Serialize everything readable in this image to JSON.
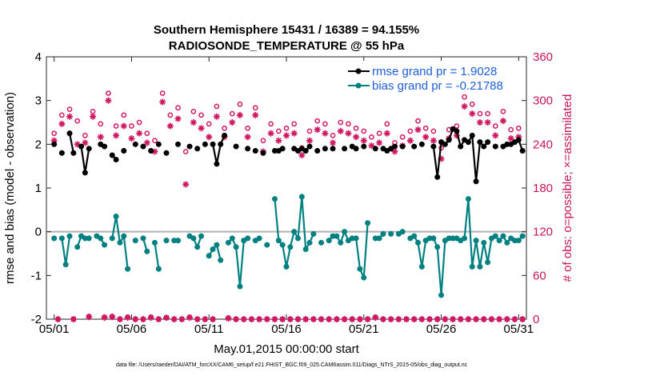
{
  "chart_data": {
    "type": "line",
    "title_line1": "Southern Hemisphere 15431 / 16389 = 94.155%",
    "title_line2": "RADIOSONDE_TEMPERATURE @ 55 hPa",
    "xlabel": "May.01,2015 00:00:00 start",
    "ylabel_left": "rmse and bias (model - observation)",
    "ylabel_right": "# of obs: o=possible; ×=assimilated",
    "footnote": "data file: /Users/raeder/DAI/ATM_forcXX/CAM6_setup/f.e21.FHIST_BGC.f09_025.CAM6assim.011/Diags_NTrS_2015-05/obs_diag_output.nc",
    "x_range": [
      0.5,
      31.5
    ],
    "ylim_left": [
      -2,
      4
    ],
    "ylim_right": [
      0,
      360
    ],
    "x_ticks": [
      {
        "day": 1,
        "label": "05/01"
      },
      {
        "day": 6,
        "label": "05/06"
      },
      {
        "day": 11,
        "label": "05/11"
      },
      {
        "day": 16,
        "label": "05/16"
      },
      {
        "day": 21,
        "label": "05/21"
      },
      {
        "day": 26,
        "label": "05/26"
      },
      {
        "day": 31,
        "label": "05/31"
      }
    ],
    "y_ticks_left": [
      "-2",
      "-1",
      "0",
      "1",
      "2",
      "3",
      "4"
    ],
    "y_ticks_right": [
      "0",
      "60",
      "120",
      "180",
      "240",
      "300",
      "360"
    ],
    "x": [
      1.0,
      1.25,
      1.5,
      1.75,
      2.0,
      2.25,
      2.5,
      2.75,
      3.0,
      3.25,
      3.5,
      3.75,
      4.0,
      4.25,
      4.5,
      4.75,
      5.0,
      5.25,
      5.5,
      5.75,
      6.0,
      6.25,
      6.5,
      6.75,
      7.0,
      7.25,
      7.5,
      7.75,
      8.0,
      8.25,
      8.5,
      8.75,
      9.0,
      9.25,
      9.5,
      9.75,
      10.0,
      10.25,
      10.5,
      10.75,
      11.0,
      11.25,
      11.5,
      11.75,
      12.0,
      12.25,
      12.5,
      12.75,
      13.0,
      13.25,
      13.5,
      13.75,
      14.0,
      14.25,
      14.5,
      14.75,
      15.0,
      15.25,
      15.5,
      15.75,
      16.0,
      16.25,
      16.5,
      16.75,
      17.0,
      17.25,
      17.5,
      17.75,
      18.0,
      18.25,
      18.5,
      18.75,
      19.0,
      19.25,
      19.5,
      19.75,
      20.0,
      20.25,
      20.5,
      20.75,
      21.0,
      21.25,
      21.5,
      21.75,
      22.0,
      22.25,
      22.5,
      22.75,
      23.0,
      23.25,
      23.5,
      23.75,
      24.0,
      24.25,
      24.5,
      24.75,
      25.0,
      25.25,
      25.5,
      25.75,
      26.0,
      26.25,
      26.5,
      26.75,
      27.0,
      27.25,
      27.5,
      27.75,
      28.0,
      28.25,
      28.5,
      28.75,
      29.0,
      29.25,
      29.5,
      29.75,
      30.0,
      30.25,
      30.5,
      30.75,
      31.0,
      31.25
    ],
    "series": [
      {
        "name": "rmse grand pr = 1.9028",
        "axis": "left",
        "color": "#000000",
        "values": [
          2.0,
          null,
          1.8,
          null,
          2.25,
          1.8,
          null,
          1.95,
          1.35,
          1.9,
          null,
          null,
          2.0,
          1.95,
          null,
          1.75,
          1.65,
          null,
          1.85,
          null,
          null,
          2.0,
          null,
          1.95,
          null,
          1.85,
          null,
          2.0,
          null,
          1.8,
          null,
          null,
          2.0,
          null,
          null,
          1.95,
          null,
          1.9,
          null,
          2.0,
          null,
          2.0,
          1.55,
          2.0,
          2.2,
          null,
          null,
          1.95,
          null,
          null,
          1.9,
          null,
          1.85,
          null,
          1.8,
          null,
          null,
          1.85,
          1.85,
          1.9,
          null,
          null,
          1.9,
          1.85,
          1.9,
          1.85,
          1.95,
          null,
          1.85,
          null,
          1.9,
          null,
          1.9,
          null,
          null,
          1.9,
          null,
          1.95,
          1.9,
          null,
          1.95,
          null,
          null,
          1.9,
          null,
          1.9,
          1.85,
          1.9,
          1.95,
          null,
          1.95,
          null,
          null,
          1.95,
          null,
          2.0,
          null,
          null,
          1.95,
          1.25,
          2.05,
          2.0,
          2.1,
          2.35,
          2.3,
          1.95,
          2.1,
          2.05,
          2.2,
          1.15,
          2.05,
          1.95,
          2.05,
          null,
          1.95,
          null,
          1.95,
          2.0,
          2.0,
          2.05,
          2.1,
          1.85
        ]
      },
      {
        "name": "bias grand pr = -0.21788",
        "axis": "left",
        "color": "#008080",
        "values": [
          -0.15,
          null,
          -0.15,
          -0.75,
          -0.1,
          null,
          -0.35,
          -0.1,
          -0.15,
          -0.15,
          null,
          -0.1,
          -0.15,
          -0.3,
          null,
          -0.15,
          0.35,
          -0.25,
          -0.1,
          -0.85,
          null,
          -0.2,
          null,
          -0.15,
          -0.45,
          null,
          -0.25,
          -0.85,
          null,
          -0.2,
          null,
          -0.2,
          -0.2,
          null,
          null,
          -0.1,
          -0.15,
          -0.35,
          -0.1,
          null,
          -0.55,
          -0.4,
          -0.3,
          -0.65,
          null,
          -0.25,
          -0.15,
          -0.35,
          -1.25,
          -0.2,
          -0.15,
          null,
          -0.2,
          -0.15,
          null,
          -0.3,
          null,
          0.75,
          -0.2,
          -0.3,
          -0.8,
          -0.35,
          0.0,
          -0.15,
          0.8,
          -0.4,
          -0.25,
          -0.05,
          null,
          -0.25,
          null,
          -0.2,
          -0.1,
          -0.1,
          -0.25,
          0.0,
          -0.2,
          -0.15,
          -0.15,
          -0.85,
          -1.05,
          0.2,
          null,
          -0.15,
          -0.15,
          -0.05,
          null,
          -0.05,
          null,
          -0.05,
          0.0,
          null,
          -0.15,
          -0.1,
          -0.25,
          -0.8,
          -0.2,
          -0.15,
          -0.15,
          -0.35,
          -1.45,
          -0.2,
          -0.15,
          -0.15,
          -0.15,
          -0.2,
          -0.15,
          0.75,
          -0.8,
          -0.2,
          -0.8,
          -0.25,
          -0.7,
          -0.15,
          -0.1,
          -0.2,
          -0.1,
          -0.25,
          -0.15,
          -0.2,
          -0.2,
          -0.1
        ]
      },
      {
        "name": "possible",
        "axis": "right",
        "color": "#d01862",
        "marker": "circle",
        "values": [
          255,
          0,
          280,
          null,
          288,
          0,
          272,
          null,
          252,
          4,
          285,
          null,
          268,
          3,
          310,
          4,
          265,
          0,
          280,
          3,
          265,
          0,
          270,
          0,
          255,
          3,
          245,
          0,
          310,
          2,
          280,
          0,
          290,
          0,
          230,
          3,
          285,
          0,
          280,
          0,
          268,
          0,
          292,
          null,
          262,
          2,
          282,
          0,
          295,
          0,
          262,
          0,
          290,
          0,
          245,
          0,
          268,
          0,
          258,
          0,
          262,
          0,
          268,
          0,
          235,
          0,
          258,
          0,
          272,
          0,
          268,
          0,
          252,
          0,
          270,
          0,
          268,
          0,
          262,
          0,
          258,
          0,
          250,
          3,
          255,
          0,
          268,
          0,
          242,
          0,
          250,
          0,
          258,
          0,
          272,
          0,
          262,
          0,
          258,
          0,
          235,
          0,
          260,
          0,
          265,
          0,
          305,
          0,
          295,
          0,
          282,
          0,
          282,
          0,
          265,
          0,
          285,
          0,
          260,
          0,
          262,
          0
        ]
      },
      {
        "name": "assimilated",
        "axis": "right",
        "color": "#d01862",
        "marker": "star",
        "values": [
          245,
          0,
          268,
          null,
          278,
          0,
          240,
          null,
          242,
          3,
          278,
          null,
          250,
          2,
          300,
          3,
          252,
          0,
          265,
          2,
          248,
          0,
          255,
          0,
          242,
          2,
          230,
          0,
          298,
          2,
          265,
          0,
          275,
          0,
          185,
          2,
          270,
          0,
          262,
          0,
          250,
          0,
          278,
          null,
          250,
          1,
          270,
          0,
          280,
          0,
          250,
          0,
          280,
          0,
          230,
          0,
          255,
          0,
          245,
          0,
          252,
          0,
          255,
          0,
          225,
          0,
          245,
          0,
          260,
          0,
          255,
          0,
          242,
          0,
          258,
          0,
          255,
          0,
          250,
          0,
          245,
          0,
          238,
          2,
          242,
          0,
          255,
          0,
          230,
          0,
          238,
          0,
          245,
          0,
          260,
          0,
          250,
          0,
          245,
          0,
          220,
          0,
          248,
          0,
          252,
          0,
          292,
          0,
          282,
          0,
          270,
          0,
          270,
          0,
          252,
          0,
          272,
          0,
          248,
          0,
          250,
          0
        ]
      }
    ],
    "legend": {
      "position": "top-right",
      "entries": [
        "rmse grand pr = 1.9028",
        "bias grand pr = -0.21788"
      ]
    }
  }
}
